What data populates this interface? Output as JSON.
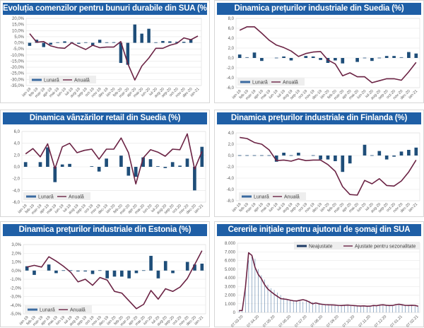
{
  "chart_data": [
    {
      "id": "us-durable-goods",
      "type": "bar+line",
      "title": "Evoluția comenzilor pentru bunuri durabile din SUA (%)",
      "ylim": [
        -35,
        20
      ],
      "ystep": 5,
      "ytick_format": "pct1",
      "yticks": [
        "20,0%",
        "15,0%",
        "10,0%",
        "5,0%",
        "0,0%",
        "-5,0%",
        "-10,0%",
        "-15,0%",
        "-20,0%",
        "-25,0%",
        "-30,0%",
        "-35,0%"
      ],
      "categories": [
        "ian-19",
        "feb-19",
        "mar-19",
        "apr-19",
        "mai-19",
        "iun-19",
        "iul-19",
        "aug-19",
        "sep-19",
        "oct-19",
        "nov-19",
        "dec-19",
        "ian-20",
        "feb-20",
        "mar-20",
        "apr-20",
        "mai-20",
        "iun-20",
        "iul-20",
        "aug-20",
        "sep-20",
        "oct-20",
        "nov-20",
        "dec-20",
        "ian-21"
      ],
      "legend": [
        "Lunară",
        "Anuală"
      ],
      "legend_position": "bottom-left",
      "series": [
        {
          "name": "Lunară",
          "type": "bar",
          "values": [
            -2.5,
            2.5,
            -3.5,
            -1.5,
            0.2,
            1.2,
            0.3,
            -0.8,
            0.2,
            -2.0,
            2.5,
            0.2,
            0.5,
            -16.5,
            -18.0,
            15.0,
            7.5,
            11.5,
            0.2,
            1.5,
            1.2,
            0.8,
            0.8,
            3.0,
            null
          ]
        },
        {
          "name": "Anuală",
          "type": "line",
          "values": [
            7.5,
            0.5,
            1.0,
            -2.5,
            -4.0,
            -4.5,
            0.0,
            -3.0,
            -5.5,
            -2.0,
            -4.0,
            -3.5,
            -3.5,
            1.0,
            -17.0,
            -30.5,
            -19.0,
            -12.5,
            -4.5,
            -4.5,
            -2.0,
            -0.5,
            4.0,
            2.5,
            5.5
          ]
        }
      ]
    },
    {
      "id": "sweden-industrial-prices",
      "type": "bar+line",
      "title": "Dinamica prețurilor industriale din Suedia (%)",
      "ylim": [
        -6,
        8
      ],
      "ystep": 2,
      "ytick_format": "num1",
      "yticks": [
        "8,0",
        "6,0",
        "4,0",
        "2,0",
        "0,0",
        "-2,0",
        "-4,0",
        "-6,0"
      ],
      "categories": [
        "ian-19",
        "feb-19",
        "mar-19",
        "apr-19",
        "mai-19",
        "iun-19",
        "iul-19",
        "aug-19",
        "sep-19",
        "oct-19",
        "nov-19",
        "dec-19",
        "ian-20",
        "feb-20",
        "mar-20",
        "apr-20",
        "mai-20",
        "iun-20",
        "iul-20",
        "aug-20",
        "sep-20",
        "oct-20",
        "nov-20",
        "dec-20",
        "ian-21"
      ],
      "legend": [
        "Lunară",
        "Anuală"
      ],
      "legend_position": "bottom-left",
      "series": [
        {
          "name": "Lunară",
          "type": "bar",
          "values": [
            0.7,
            0.1,
            1.1,
            -0.6,
            null,
            -0.1,
            0.3,
            -0.5,
            null,
            0.4,
            0.3,
            -0.4,
            -1.0,
            -0.5,
            -1.1,
            null,
            -0.8,
            -0.1,
            -0.6,
            -0.1,
            0.4,
            0.4,
            0.1,
            1.2,
            0.9
          ]
        },
        {
          "name": "Anuală",
          "type": "line",
          "values": [
            5.6,
            6.3,
            6.3,
            5.0,
            3.6,
            2.6,
            2.1,
            1.4,
            0.3,
            0.9,
            1.2,
            1.3,
            -0.4,
            -1.2,
            -3.6,
            -3.0,
            -3.8,
            -3.8,
            -5.0,
            -4.6,
            -4.2,
            -4.2,
            -4.5,
            -2.8,
            -0.9
          ]
        }
      ]
    },
    {
      "id": "sweden-retail-sales",
      "type": "bar+line",
      "title": "Dinamica vânzărilor retail din Suedia (%)",
      "ylim": [
        -6,
        6
      ],
      "ystep": 2,
      "ytick_format": "num1",
      "yticks": [
        "6,0",
        "4,0",
        "2,0",
        "0,0",
        "-2,0",
        "-4,0",
        "-6,0"
      ],
      "categories": [
        "ian-19",
        "feb-19",
        "mar-19",
        "apr-19",
        "mai-19",
        "iun-19",
        "iul-19",
        "aug-19",
        "sep-19",
        "oct-19",
        "nov-19",
        "dec-19",
        "ian-20",
        "feb-20",
        "mar-20",
        "apr-20",
        "mai-20",
        "iun-20",
        "iul-20",
        "aug-20",
        "sep-20",
        "oct-20",
        "nov-20",
        "dec-20",
        "ian-21"
      ],
      "legend": [
        "Lunară",
        "Anuală"
      ],
      "legend_position": "bottom-left",
      "series": [
        {
          "name": "Lunară",
          "type": "bar",
          "values": [
            0.8,
            null,
            0.8,
            3.3,
            -2.6,
            0.4,
            0.5,
            null,
            null,
            0.1,
            -0.8,
            1.4,
            null,
            1.9,
            -1.5,
            -1.7,
            1.6,
            1.3,
            0.1,
            -0.2,
            0.8,
            0.2,
            1.4,
            -4.0,
            3.4
          ]
        },
        {
          "name": "Anuală",
          "type": "line",
          "values": [
            2.2,
            3.1,
            1.7,
            3.9,
            -0.3,
            3.4,
            4.0,
            2.4,
            2.8,
            3.0,
            1.3,
            3.0,
            3.0,
            4.9,
            2.4,
            -2.9,
            1.5,
            2.9,
            2.5,
            1.8,
            3.0,
            2.9,
            5.6,
            -0.4,
            2.6
          ]
        }
      ]
    },
    {
      "id": "finland-industrial-prices",
      "type": "bar+line",
      "title": "Dinamica prețurilor industriale din Finlanda (%)",
      "ylim": [
        -8,
        4
      ],
      "ystep": 2,
      "ytick_format": "num1",
      "yticks": [
        "4,0",
        "2,0",
        "0,0",
        "-2,0",
        "-4,0",
        "-6,0",
        "-8,0"
      ],
      "categories": [
        "ian-19",
        "feb-19",
        "mar-19",
        "apr-19",
        "mai-19",
        "iun-19",
        "iul-19",
        "aug-19",
        "sep-19",
        "oct-19",
        "nov-19",
        "dec-19",
        "ian-20",
        "feb-20",
        "mar-20",
        "apr-20",
        "mai-20",
        "iun-20",
        "iul-20",
        "aug-20",
        "sep-20",
        "oct-20",
        "nov-20",
        "dec-20",
        "ian-21"
      ],
      "legend": [
        "Lunară",
        "Anuală"
      ],
      "legend_position": "bottom-left",
      "series": [
        {
          "name": "Lunară",
          "type": "bar",
          "values": [
            0.0,
            0.0,
            0.0,
            0.0,
            0.0,
            -1.1,
            0.5,
            -0.1,
            0.5,
            null,
            -0.1,
            -0.7,
            -0.7,
            -1.0,
            -2.9,
            -1.4,
            null,
            1.9,
            -0.1,
            0.8,
            -0.7,
            -0.2,
            0.7,
            1.0,
            1.4
          ]
        },
        {
          "name": "Anuală",
          "type": "line",
          "values": [
            3.2,
            3.0,
            2.3,
            2.0,
            1.0,
            -0.9,
            -0.8,
            -1.0,
            -0.6,
            -0.9,
            -0.8,
            -0.8,
            -1.6,
            -2.8,
            -5.5,
            -6.9,
            -7.0,
            -4.4,
            -5.0,
            -4.1,
            -5.3,
            -5.4,
            -4.5,
            -2.9,
            -0.8
          ]
        }
      ]
    },
    {
      "id": "estonia-industrial-prices",
      "type": "bar+line",
      "title": "Dinamica prețurilor industriale din Estonia (%)",
      "ylim": [
        -5,
        3
      ],
      "ystep": 1,
      "ytick_format": "pct1",
      "yticks": [
        "3,0%",
        "2,0%",
        "1,0%",
        "0,0%",
        "-1,0%",
        "-2,0%",
        "-3,0%",
        "-4,0%",
        "-5,0%"
      ],
      "categories": [
        "ian-19",
        "feb-19",
        "mar-19",
        "apr-19",
        "mai-19",
        "iun-19",
        "iul-19",
        "aug-19",
        "sep-19",
        "oct-19",
        "nov-19",
        "dec-19",
        "ian-20",
        "feb-20",
        "mar-20",
        "apr-20",
        "mai-20",
        "iun-20",
        "iul-20",
        "aug-20",
        "sep-20",
        "oct-20",
        "nov-20",
        "dec-20",
        "ian-21"
      ],
      "legend": [
        "Lunară",
        "Anuală"
      ],
      "legend_position": "bottom-left",
      "series": [
        {
          "name": "Lunară",
          "type": "bar",
          "values": [
            0.5,
            -0.5,
            null,
            0.7,
            -0.3,
            0.0,
            0.0,
            -0.1,
            -0.1,
            -0.4,
            0.0,
            -0.9,
            -0.7,
            -0.7,
            -0.9,
            -0.3,
            0.0,
            1.7,
            -0.9,
            1.1,
            -0.3,
            null,
            1.0,
            0.7,
            0.8
          ]
        },
        {
          "name": "Anuală",
          "type": "line",
          "values": [
            0.4,
            0.6,
            0.4,
            1.6,
            1.1,
            0.5,
            -0.2,
            -1.3,
            -1.0,
            -1.7,
            -0.8,
            -1.1,
            -2.4,
            -2.6,
            -3.5,
            -4.4,
            -3.9,
            -2.3,
            -3.3,
            -2.1,
            -2.4,
            -1.9,
            -0.9,
            0.7,
            2.3
          ]
        }
      ]
    },
    {
      "id": "us-jobless-claims",
      "type": "bar+line",
      "title": "Cererile inițiale pentru ajutorul de șomaj din SUA",
      "ylim": [
        0,
        8000
      ],
      "ystep": 1000,
      "yticks": [
        "8.000",
        "7.000",
        "6.000",
        "5.000",
        "4.000",
        "3.000",
        "2.000",
        "1.000",
        "0"
      ],
      "xlabels": [
        "07.03.20",
        "07.04.20",
        "07.05.20",
        "07.06.20",
        "07.07.20",
        "07.08.20",
        "07.09.20",
        "07.10.20",
        "07.11.20",
        "07.12.20",
        "07.01.21",
        "07.02.21"
      ],
      "legend": [
        "Neajustate",
        "Ajustate pentru sezonalitate"
      ],
      "legend_position": "top-right",
      "series": [
        {
          "name": "Neajustate",
          "type": "bar",
          "values": [
            220,
            250,
            2900,
            6000,
            6600,
            6200,
            5000,
            4300,
            3800,
            3200,
            2800,
            2600,
            2300,
            2000,
            1700,
            1500,
            1450,
            1400,
            1350,
            1300,
            1250,
            1300,
            1350,
            1200,
            1000,
            1100,
            1000,
            900,
            850,
            850,
            830,
            800,
            780,
            820,
            800,
            750,
            720,
            700,
            750,
            700,
            680,
            720,
            750,
            720,
            800,
            820,
            780,
            750,
            760,
            800,
            850,
            820,
            800,
            780,
            790,
            750,
            700
          ]
        },
        {
          "name": "Ajustate pentru sezonalitate",
          "type": "line",
          "values": [
            210,
            230,
            2900,
            6900,
            6600,
            5200,
            4400,
            3900,
            3200,
            2700,
            2400,
            2100,
            1850,
            1600,
            1550,
            1500,
            1420,
            1350,
            1320,
            1400,
            1480,
            1380,
            1200,
            1000,
            1100,
            1000,
            940,
            900,
            880,
            870,
            850,
            820,
            800,
            830,
            850,
            820,
            790,
            760,
            740,
            760,
            720,
            730,
            800,
            780,
            850,
            880,
            830,
            800,
            810,
            900,
            950,
            880,
            820,
            810,
            830,
            820,
            720
          ]
        }
      ]
    }
  ],
  "colors": {
    "title_bg": "#1f5fa6",
    "bar": "#1f4e79",
    "line": "#6b2344",
    "grid": "#e4e4e4"
  }
}
